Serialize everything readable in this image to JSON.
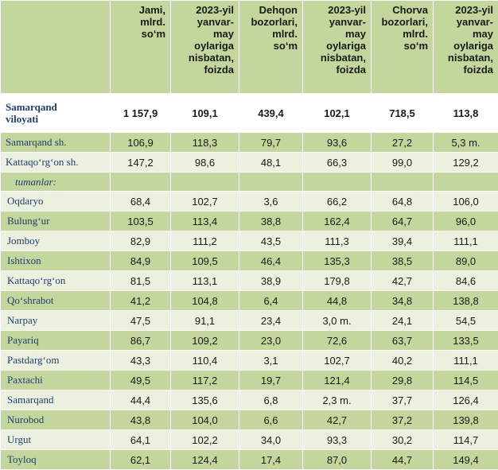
{
  "headers": [
    "",
    "Jami,\nmlrd.\nso‘m",
    "2023-yil\nyanvar-\nmay\noylariga\nnisbatan,\nfoizda",
    "Dehqon\nbozorlari,\nmlrd.\nso‘m",
    "2023-yil\nyanvar-\nmay\noylariga\nnisbatan,\nfoizda",
    "Chorva\nbozorlari,\nmlrd.\nso‘m",
    "2023-yil\nyanvar-\nmay\noylariga\nnisbatan,\nfoizda"
  ],
  "region": {
    "name": "Samarqand\nviloyati",
    "values": [
      "1 157,9",
      "109,1",
      "439,4",
      "102,1",
      "718,5",
      "113,8"
    ]
  },
  "cities": [
    {
      "name": "Samarqand sh.",
      "values": [
        "106,9",
        "118,3",
        "79,7",
        "93,6",
        "27,2",
        "5,3 m."
      ]
    },
    {
      "name": "Kattaqo‘rg‘on sh.",
      "values": [
        "147,2",
        "98,6",
        "48,1",
        "66,3",
        "99,0",
        "129,2"
      ]
    }
  ],
  "districts_label": "tumanlar:",
  "districts": [
    {
      "name": "Oqdaryo",
      "values": [
        "68,4",
        "102,7",
        "3,6",
        "66,2",
        "64,8",
        "106,0"
      ]
    },
    {
      "name": "Bulung‘ur",
      "values": [
        "103,5",
        "113,4",
        "38,8",
        "162,4",
        "64,7",
        "96,0"
      ]
    },
    {
      "name": "Jomboy",
      "values": [
        "82,9",
        "111,2",
        "43,5",
        "111,3",
        "39,4",
        "111,1"
      ]
    },
    {
      "name": "Ishtixon",
      "values": [
        "84,9",
        "109,5",
        "46,4",
        "135,3",
        "38,5",
        "89,0"
      ]
    },
    {
      "name": "Kattaqo‘rg‘on",
      "values": [
        "81,5",
        "113,1",
        "38,9",
        "179,8",
        "42,7",
        "84,6"
      ]
    },
    {
      "name": "Qo‘shrabot",
      "values": [
        "41,2",
        "104,8",
        "6,4",
        "44,8",
        "34,8",
        "138,8"
      ]
    },
    {
      "name": "Narpay",
      "values": [
        "47,5",
        "91,1",
        "23,4",
        "3,0 m.",
        "24,1",
        "54,5"
      ]
    },
    {
      "name": "Payariq",
      "values": [
        "86,7",
        "109,2",
        "23,0",
        "72,6",
        "63,7",
        "133,5"
      ]
    },
    {
      "name": "Pastdarg‘om",
      "values": [
        "43,3",
        "110,4",
        "3,1",
        "102,7",
        "40,2",
        "111,1"
      ]
    },
    {
      "name": "Paxtachi",
      "values": [
        "49,5",
        "117,2",
        "19,7",
        "121,4",
        "29,8",
        "114,5"
      ]
    },
    {
      "name": "Samarqand",
      "values": [
        "44,4",
        "135,6",
        "6,8",
        "2,3 m.",
        "37,7",
        "126,4"
      ]
    },
    {
      "name": "Nurobod",
      "values": [
        "43,8",
        "104,0",
        "6,6",
        "42,7",
        "37,2",
        "139,8"
      ]
    },
    {
      "name": "Urgut",
      "values": [
        "64,1",
        "102,2",
        "34,0",
        "93,3",
        "30,2",
        "114,7"
      ]
    },
    {
      "name": "Toyloq",
      "values": [
        "62,1",
        "124,4",
        "17,4",
        "87,0",
        "44,7",
        "149,4"
      ]
    }
  ]
}
